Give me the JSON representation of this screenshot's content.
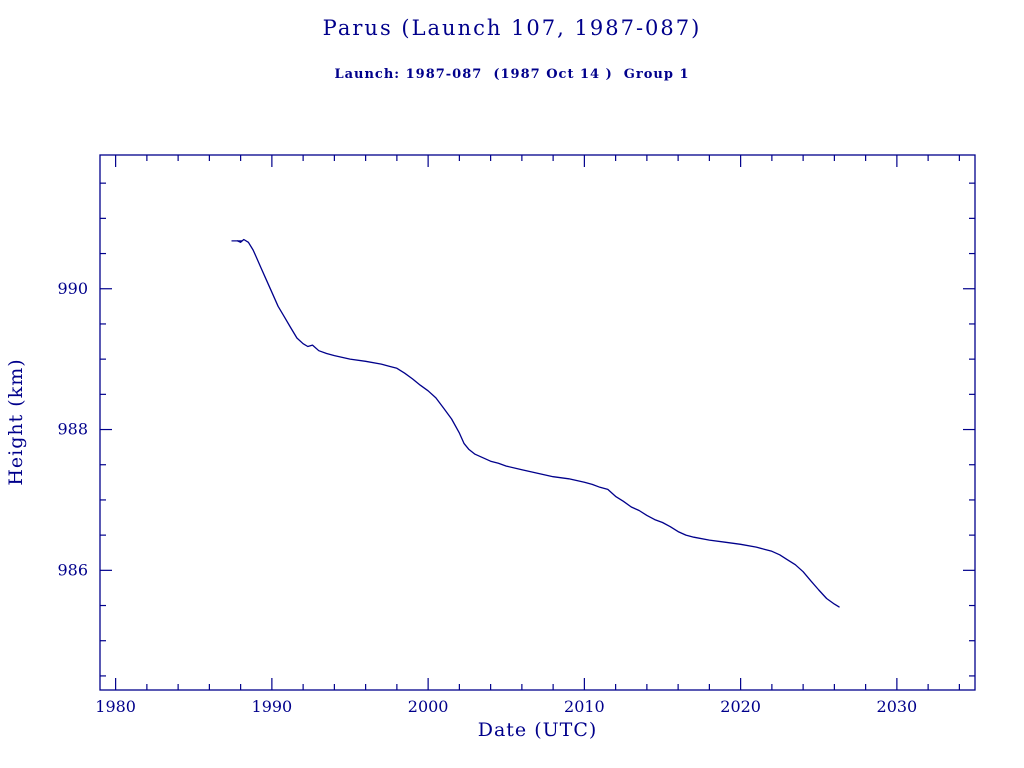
{
  "page": {
    "title": "Parus (Launch 107, 1987-087)",
    "subtitle": "Launch: 1987-087  (1987 Oct 14 )  Group 1"
  },
  "chart_data": {
    "type": "line",
    "title": "Parus (Launch 107, 1987-087)",
    "subtitle": "Launch: 1987-087  (1987 Oct 14 )  Group 1",
    "xlabel": "Date (UTC)",
    "ylabel": "Height (km)",
    "xlim": [
      1979,
      2035
    ],
    "ylim": [
      984.3,
      991.9
    ],
    "x_major_ticks": [
      1980,
      1990,
      2000,
      2010,
      2020,
      2030
    ],
    "x_minor_step": 2,
    "y_major_ticks": [
      986,
      988,
      990
    ],
    "y_minor_step": 0.5,
    "grid": false,
    "legend": "none",
    "line_color": "#00008b",
    "text_color": "#00008b",
    "start_marker": "horizontal-dash",
    "series": [
      {
        "name": "height_km",
        "points": [
          [
            1987.8,
            990.68
          ],
          [
            1988.0,
            990.66
          ],
          [
            1988.2,
            990.7
          ],
          [
            1988.5,
            990.66
          ],
          [
            1988.8,
            990.55
          ],
          [
            1989.0,
            990.45
          ],
          [
            1989.3,
            990.3
          ],
          [
            1989.6,
            990.15
          ],
          [
            1990.0,
            989.95
          ],
          [
            1990.4,
            989.75
          ],
          [
            1990.8,
            989.6
          ],
          [
            1991.2,
            989.45
          ],
          [
            1991.6,
            989.3
          ],
          [
            1992.0,
            989.22
          ],
          [
            1992.3,
            989.18
          ],
          [
            1992.6,
            989.2
          ],
          [
            1993.0,
            989.12
          ],
          [
            1993.5,
            989.08
          ],
          [
            1994.0,
            989.05
          ],
          [
            1995.0,
            989.0
          ],
          [
            1996.0,
            988.97
          ],
          [
            1997.0,
            988.93
          ],
          [
            1997.5,
            988.9
          ],
          [
            1998.0,
            988.87
          ],
          [
            1998.5,
            988.8
          ],
          [
            1999.0,
            988.72
          ],
          [
            1999.5,
            988.63
          ],
          [
            2000.0,
            988.55
          ],
          [
            2000.5,
            988.45
          ],
          [
            2001.0,
            988.3
          ],
          [
            2001.5,
            988.15
          ],
          [
            2002.0,
            987.95
          ],
          [
            2002.3,
            987.8
          ],
          [
            2002.6,
            987.72
          ],
          [
            2003.0,
            987.65
          ],
          [
            2003.5,
            987.6
          ],
          [
            2004.0,
            987.55
          ],
          [
            2004.5,
            987.52
          ],
          [
            2005.0,
            987.48
          ],
          [
            2006.0,
            987.43
          ],
          [
            2007.0,
            987.38
          ],
          [
            2008.0,
            987.33
          ],
          [
            2009.0,
            987.3
          ],
          [
            2010.0,
            987.25
          ],
          [
            2010.5,
            987.22
          ],
          [
            2011.0,
            987.18
          ],
          [
            2011.5,
            987.15
          ],
          [
            2012.0,
            987.05
          ],
          [
            2012.5,
            986.98
          ],
          [
            2013.0,
            986.9
          ],
          [
            2013.5,
            986.85
          ],
          [
            2014.0,
            986.78
          ],
          [
            2014.5,
            986.72
          ],
          [
            2015.0,
            986.68
          ],
          [
            2015.5,
            986.62
          ],
          [
            2016.0,
            986.55
          ],
          [
            2016.5,
            986.5
          ],
          [
            2017.0,
            986.47
          ],
          [
            2018.0,
            986.43
          ],
          [
            2019.0,
            986.4
          ],
          [
            2020.0,
            986.37
          ],
          [
            2021.0,
            986.33
          ],
          [
            2021.5,
            986.3
          ],
          [
            2022.0,
            986.27
          ],
          [
            2022.5,
            986.22
          ],
          [
            2023.0,
            986.15
          ],
          [
            2023.5,
            986.08
          ],
          [
            2024.0,
            985.98
          ],
          [
            2024.5,
            985.85
          ],
          [
            2025.0,
            985.72
          ],
          [
            2025.5,
            985.6
          ],
          [
            2026.0,
            985.52
          ],
          [
            2026.3,
            985.48
          ]
        ]
      }
    ]
  }
}
